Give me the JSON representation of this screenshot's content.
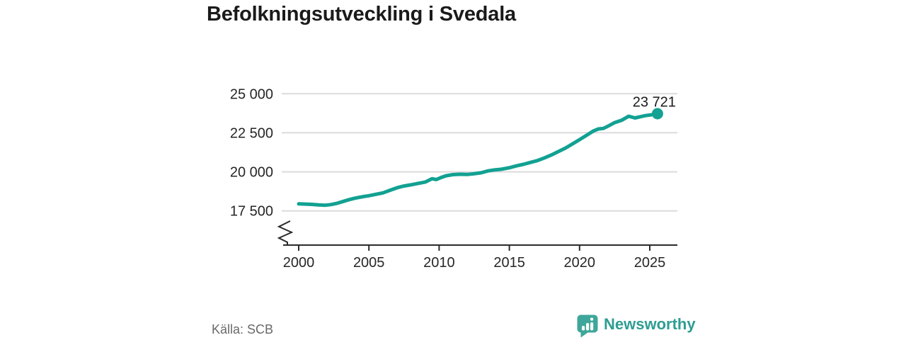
{
  "title": "Befolkningsutveckling i Svedala",
  "source": "Källa: SCB",
  "logo": {
    "brand": "Newsworthy",
    "icon": "speech-bubble-bar-chart",
    "icon_color": "#3FA69B",
    "text_color": "#2E9D92"
  },
  "chart_data": {
    "type": "line",
    "title": "Befolkningsutveckling i Svedala",
    "xlabel": "",
    "ylabel": "",
    "legend_position": "none",
    "grid": "horizontal",
    "axis_break": true,
    "line_color": "#12A192",
    "grid_color": "#DBDBDB",
    "axis_color": "#2B2B2B",
    "tick_label_color": "#262626",
    "x_ticks": [
      2000,
      2005,
      2010,
      2015,
      2020,
      2025
    ],
    "y_ticks": [
      {
        "value": 25000,
        "label": "25 000"
      },
      {
        "value": 22500,
        "label": "22 500"
      },
      {
        "value": 20000,
        "label": "20 000"
      },
      {
        "value": 17500,
        "label": "17 500"
      }
    ],
    "x_domain": [
      2000,
      2025.55
    ],
    "y_domain": [
      17500,
      25000
    ],
    "end_label": "23 721",
    "end_point": {
      "x": 2025.55,
      "y": 23721
    },
    "series": [
      {
        "name": "Befolkning",
        "points": [
          [
            2000.0,
            17950
          ],
          [
            2000.45,
            17935
          ],
          [
            2000.9,
            17915
          ],
          [
            2001.4,
            17880
          ],
          [
            2001.9,
            17865
          ],
          [
            2002.3,
            17905
          ],
          [
            2002.75,
            17990
          ],
          [
            2003.2,
            18110
          ],
          [
            2003.6,
            18220
          ],
          [
            2004.0,
            18310
          ],
          [
            2004.5,
            18400
          ],
          [
            2005.0,
            18470
          ],
          [
            2005.5,
            18560
          ],
          [
            2006.0,
            18650
          ],
          [
            2006.5,
            18820
          ],
          [
            2007.0,
            18980
          ],
          [
            2007.5,
            19090
          ],
          [
            2008.0,
            19170
          ],
          [
            2008.5,
            19260
          ],
          [
            2009.0,
            19340
          ],
          [
            2009.5,
            19560
          ],
          [
            2009.8,
            19505
          ],
          [
            2010.1,
            19620
          ],
          [
            2010.5,
            19750
          ],
          [
            2011.0,
            19820
          ],
          [
            2011.5,
            19845
          ],
          [
            2012.0,
            19830
          ],
          [
            2012.5,
            19875
          ],
          [
            2013.0,
            19940
          ],
          [
            2013.5,
            20060
          ],
          [
            2014.0,
            20130
          ],
          [
            2014.4,
            20160
          ],
          [
            2015.0,
            20260
          ],
          [
            2015.5,
            20380
          ],
          [
            2016.0,
            20480
          ],
          [
            2016.5,
            20600
          ],
          [
            2017.0,
            20720
          ],
          [
            2017.5,
            20890
          ],
          [
            2018.0,
            21080
          ],
          [
            2018.5,
            21300
          ],
          [
            2019.0,
            21520
          ],
          [
            2019.5,
            21790
          ],
          [
            2020.0,
            22060
          ],
          [
            2020.5,
            22340
          ],
          [
            2021.0,
            22620
          ],
          [
            2021.35,
            22745
          ],
          [
            2021.7,
            22780
          ],
          [
            2022.1,
            22960
          ],
          [
            2022.5,
            23150
          ],
          [
            2023.0,
            23300
          ],
          [
            2023.5,
            23560
          ],
          [
            2023.95,
            23450
          ],
          [
            2024.35,
            23530
          ],
          [
            2024.7,
            23600
          ],
          [
            2025.1,
            23650
          ],
          [
            2025.55,
            23721
          ]
        ]
      }
    ]
  }
}
